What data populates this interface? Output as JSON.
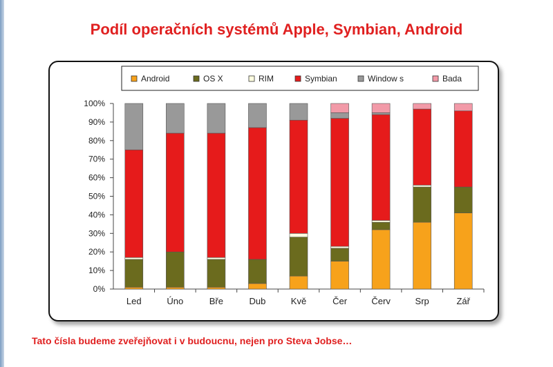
{
  "slide": {
    "title": "Podíl operačních systémů Apple, Symbian, Android",
    "footer": "Tato čísla budeme zveřejňovat i v budoucnu, nejen pro Steva Jobse…"
  },
  "chart_data": {
    "type": "bar",
    "stacked": true,
    "title": "",
    "xlabel": "",
    "ylabel": "",
    "ylim": [
      0,
      100
    ],
    "yticks": [
      "0%",
      "10%",
      "20%",
      "30%",
      "40%",
      "50%",
      "60%",
      "70%",
      "80%",
      "90%",
      "100%"
    ],
    "legend_position": "top",
    "grid": false,
    "categories": [
      "Led",
      "Úno",
      "Bře",
      "Dub",
      "Kvě",
      "Čer",
      "Červ",
      "Srp",
      "Zář"
    ],
    "series": [
      {
        "name": "Android",
        "color": "#f7a21b",
        "values": [
          1,
          1,
          1,
          3,
          7,
          15,
          32,
          36,
          41
        ]
      },
      {
        "name": "OS X",
        "color": "#6b6b1e",
        "values": [
          15,
          19,
          15,
          13,
          21,
          7,
          4,
          19,
          14
        ]
      },
      {
        "name": "RIM",
        "color": "#ffffe0",
        "values": [
          1,
          0,
          1,
          0,
          2,
          1,
          1,
          1,
          0
        ]
      },
      {
        "name": "Symbian",
        "color": "#e61b1b",
        "values": [
          58,
          64,
          67,
          71,
          61,
          69,
          57,
          41,
          41
        ]
      },
      {
        "name": "Window s",
        "color": "#999999",
        "values": [
          25,
          16,
          16,
          13,
          9,
          3,
          1,
          0,
          0
        ]
      },
      {
        "name": "Bada",
        "color": "#f29aa8",
        "values": [
          0,
          0,
          0,
          0,
          0,
          5,
          5,
          3,
          4
        ]
      }
    ]
  }
}
